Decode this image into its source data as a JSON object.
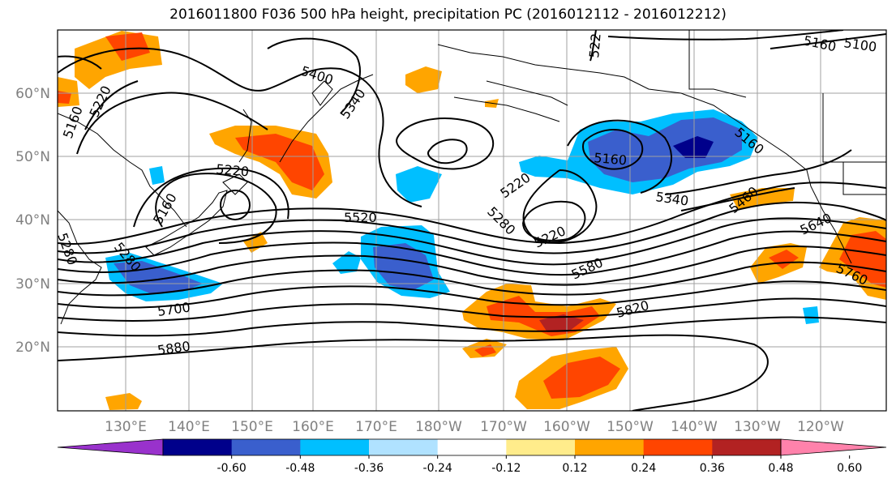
{
  "title": "2016011800 F036 500 hPa height, precipitation PC (2016012112 - 2016012212)",
  "map": {
    "lat_ticks": [
      "60°N",
      "50°N",
      "40°N",
      "30°N",
      "20°N"
    ],
    "lon_ticks": [
      "130°E",
      "140°E",
      "150°E",
      "160°E",
      "170°E",
      "180°W",
      "170°W",
      "160°W",
      "150°W",
      "140°W",
      "130°W",
      "120°W"
    ],
    "contour_labels": [
      "5400",
      "5340",
      "5220",
      "5160",
      "5220",
      "5160",
      "5280",
      "5700",
      "5880",
      "5520",
      "5280",
      "5220",
      "5220",
      "5160",
      "5340",
      "5460",
      "5580",
      "5820",
      "5640",
      "5760",
      "5100",
      "5160",
      "522",
      "5280",
      "5160"
    ]
  },
  "colorbar": {
    "colors": [
      "#9932CC",
      "#00008B",
      "#3A5FCD",
      "#00BFFF",
      "#B0E2FF",
      "#FFFFFF",
      "#FFEC8B",
      "#FFA500",
      "#FF4500",
      "#B22222",
      "#FF82AB"
    ],
    "labels": [
      "-0.60",
      "-0.48",
      "-0.36",
      "-0.24",
      "-0.12",
      "0.12",
      "0.24",
      "0.36",
      "0.48",
      "0.60"
    ]
  }
}
